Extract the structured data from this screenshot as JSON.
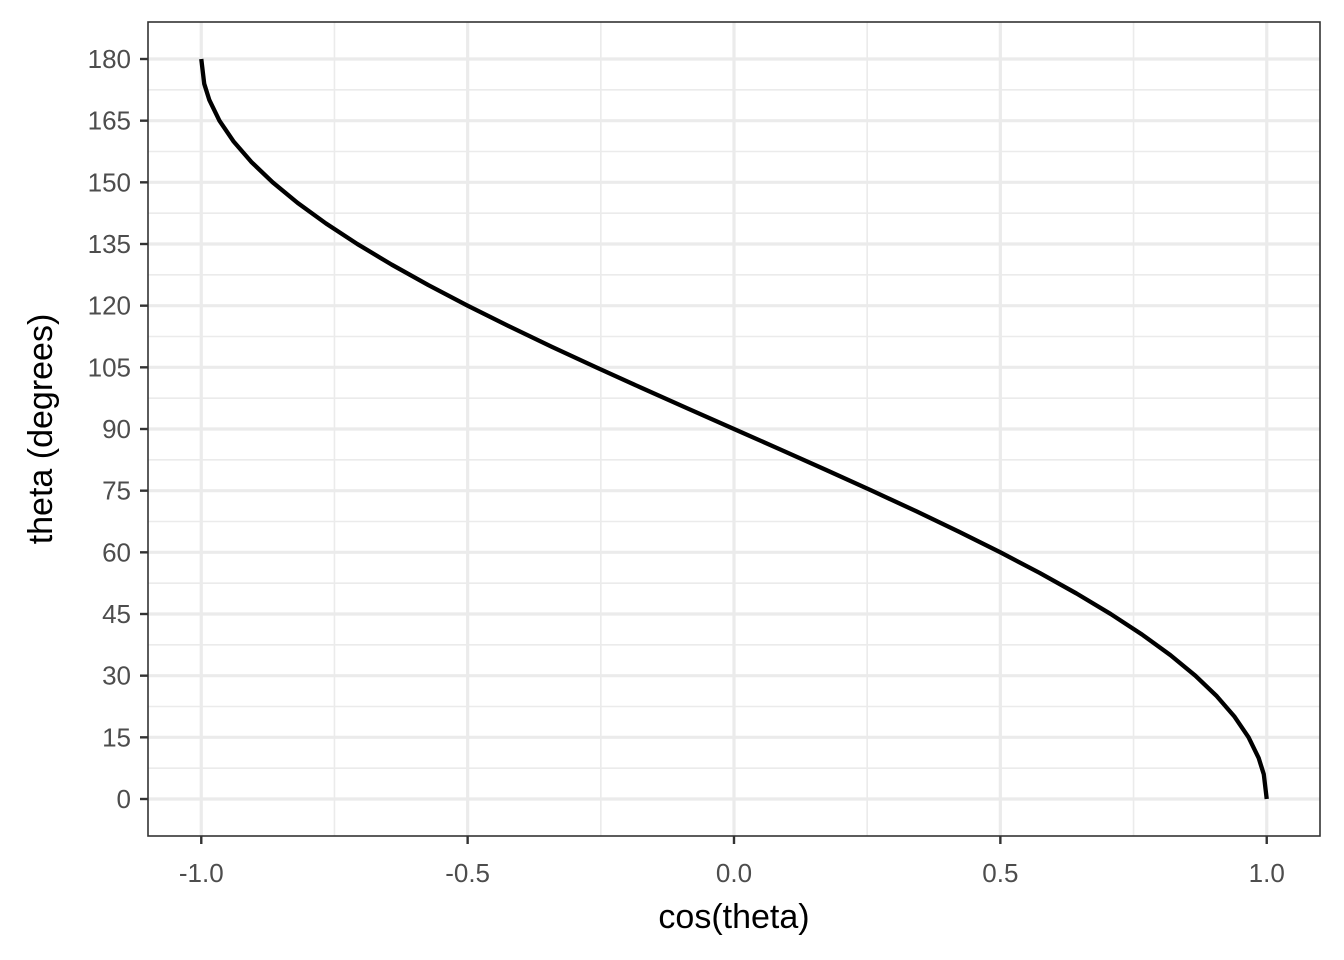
{
  "chart_data": {
    "type": "line",
    "xlabel": "cos(theta)",
    "ylabel": "theta (degrees)",
    "xlim": [
      -1.1,
      1.1
    ],
    "ylim": [
      -9,
      189
    ],
    "x_ticks": [
      -1.0,
      -0.5,
      0.0,
      0.5,
      1.0
    ],
    "x_tick_labels": [
      "-1.0",
      "-0.5",
      "0.0",
      "0.5",
      "1.0"
    ],
    "x_minor_ticks": [
      -0.75,
      -0.25,
      0.25,
      0.75
    ],
    "y_ticks": [
      0,
      15,
      30,
      45,
      60,
      75,
      90,
      105,
      120,
      135,
      150,
      165,
      180
    ],
    "y_tick_labels": [
      "0",
      "15",
      "30",
      "45",
      "60",
      "75",
      "90",
      "105",
      "120",
      "135",
      "150",
      "165",
      "180"
    ],
    "y_minor_ticks": [
      7.5,
      22.5,
      37.5,
      52.5,
      67.5,
      82.5,
      97.5,
      112.5,
      127.5,
      142.5,
      157.5,
      172.5
    ],
    "grid": true,
    "series": [
      {
        "color": "#000000",
        "x": [
          1.0,
          0.9945,
          0.9848,
          0.9659,
          0.9397,
          0.9063,
          0.866,
          0.8192,
          0.766,
          0.7071,
          0.6428,
          0.5736,
          0.5,
          0.4226,
          0.342,
          0.2588,
          0.1736,
          0.0872,
          0.0,
          -0.0872,
          -0.1736,
          -0.2588,
          -0.342,
          -0.4226,
          -0.5,
          -0.5736,
          -0.6428,
          -0.7071,
          -0.766,
          -0.8192,
          -0.866,
          -0.9063,
          -0.9397,
          -0.9659,
          -0.9848,
          -0.9945,
          -1.0
        ],
        "y": [
          0,
          6,
          10,
          15,
          20,
          25,
          30,
          35,
          40,
          45,
          50,
          55,
          60,
          65,
          70,
          75,
          80,
          85,
          90,
          95,
          100,
          105,
          110,
          115,
          120,
          125,
          130,
          135,
          140,
          145,
          150,
          155,
          160,
          165,
          170,
          174,
          180
        ]
      }
    ]
  }
}
